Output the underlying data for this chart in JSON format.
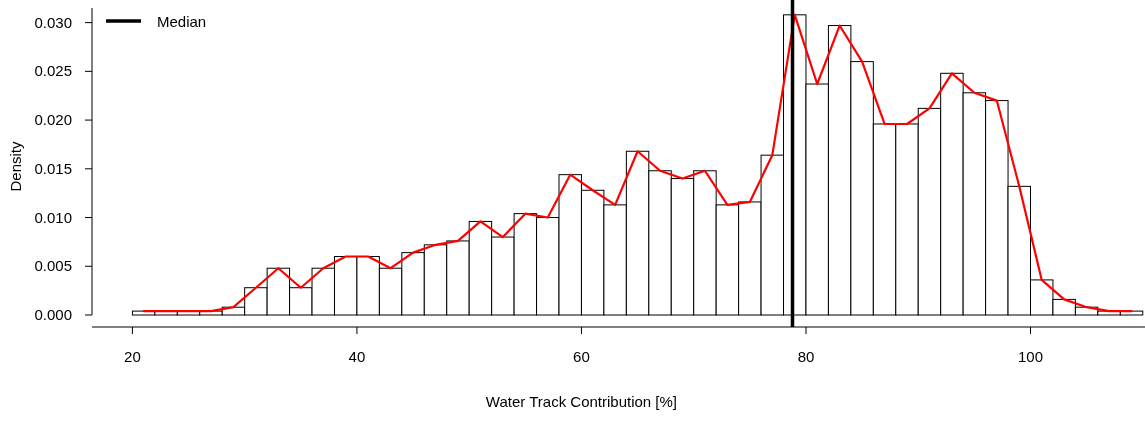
{
  "chart_data": {
    "type": "histogram",
    "xlabel": "Water Track Contribution [%]",
    "ylabel": "Density",
    "xlim": [
      16.4,
      110.2
    ],
    "xticks": [
      20,
      40,
      60,
      80,
      100
    ],
    "ylim": [
      0,
      0.0315
    ],
    "yticks": [
      {
        "value": 0,
        "label": "0.000"
      },
      {
        "value": 0.005,
        "label": "0.005"
      },
      {
        "value": 0.01,
        "label": "0.010"
      },
      {
        "value": 0.015,
        "label": "0.015"
      },
      {
        "value": 0.02,
        "label": "0.020"
      },
      {
        "value": 0.025,
        "label": "0.025"
      },
      {
        "value": 0.03,
        "label": "0.030"
      }
    ],
    "grid": false,
    "legend": "top left",
    "series": [
      {
        "type": "histogram",
        "color": "#ffffff",
        "bins": [
          20,
          22,
          24,
          26,
          28,
          30,
          32,
          34,
          36,
          38,
          40,
          42,
          44,
          46,
          48,
          50,
          52,
          54,
          56,
          58,
          60,
          62,
          64,
          66,
          68,
          70,
          72,
          74,
          76,
          78,
          80,
          82,
          84,
          86,
          88,
          90,
          92,
          94,
          96,
          98,
          100,
          102,
          104,
          106,
          108,
          110
        ],
        "values": [
          0.0004,
          0.0004,
          0.0004,
          0.0004,
          0.0008,
          0.0028,
          0.0048,
          0.0028,
          0.0048,
          0.006,
          0.006,
          0.0048,
          0.0064,
          0.0072,
          0.0076,
          0.0096,
          0.008,
          0.0104,
          0.01,
          0.0144,
          0.0128,
          0.0113,
          0.0168,
          0.0148,
          0.014,
          0.0148,
          0.0113,
          0.0116,
          0.0164,
          0.0308,
          0.0237,
          0.0297,
          0.026,
          0.0196,
          0.0196,
          0.0212,
          0.0248,
          0.0228,
          0.022,
          0.0132,
          0.0036,
          0.0016,
          0.0008,
          0.0004,
          0.0004
        ]
      },
      {
        "type": "line",
        "color": "#ff0000",
        "x": [
          21,
          23,
          25,
          27,
          29,
          31,
          33,
          35,
          37,
          39,
          41,
          43,
          45,
          47,
          49,
          51,
          53,
          55,
          57,
          59,
          61,
          63,
          65,
          67,
          69,
          71,
          73,
          75,
          77,
          79,
          81,
          83,
          85,
          87,
          89,
          91,
          93,
          95,
          97,
          99,
          101,
          103,
          105,
          107,
          109
        ],
        "values": [
          0.0004,
          0.0004,
          0.0004,
          0.0004,
          0.0008,
          0.0028,
          0.0048,
          0.0028,
          0.0048,
          0.006,
          0.006,
          0.0048,
          0.0064,
          0.0072,
          0.0076,
          0.0096,
          0.008,
          0.0104,
          0.01,
          0.0144,
          0.0128,
          0.0113,
          0.0168,
          0.0148,
          0.014,
          0.0148,
          0.0113,
          0.0116,
          0.0164,
          0.0308,
          0.0237,
          0.0297,
          0.026,
          0.0196,
          0.0196,
          0.0212,
          0.0248,
          0.0228,
          0.022,
          0.0132,
          0.0036,
          0.0016,
          0.0008,
          0.0004,
          0.0004
        ]
      }
    ],
    "ref_lines": [
      {
        "axis": "x",
        "value": 78.8,
        "label": "Median",
        "color": "#000000"
      }
    ]
  }
}
